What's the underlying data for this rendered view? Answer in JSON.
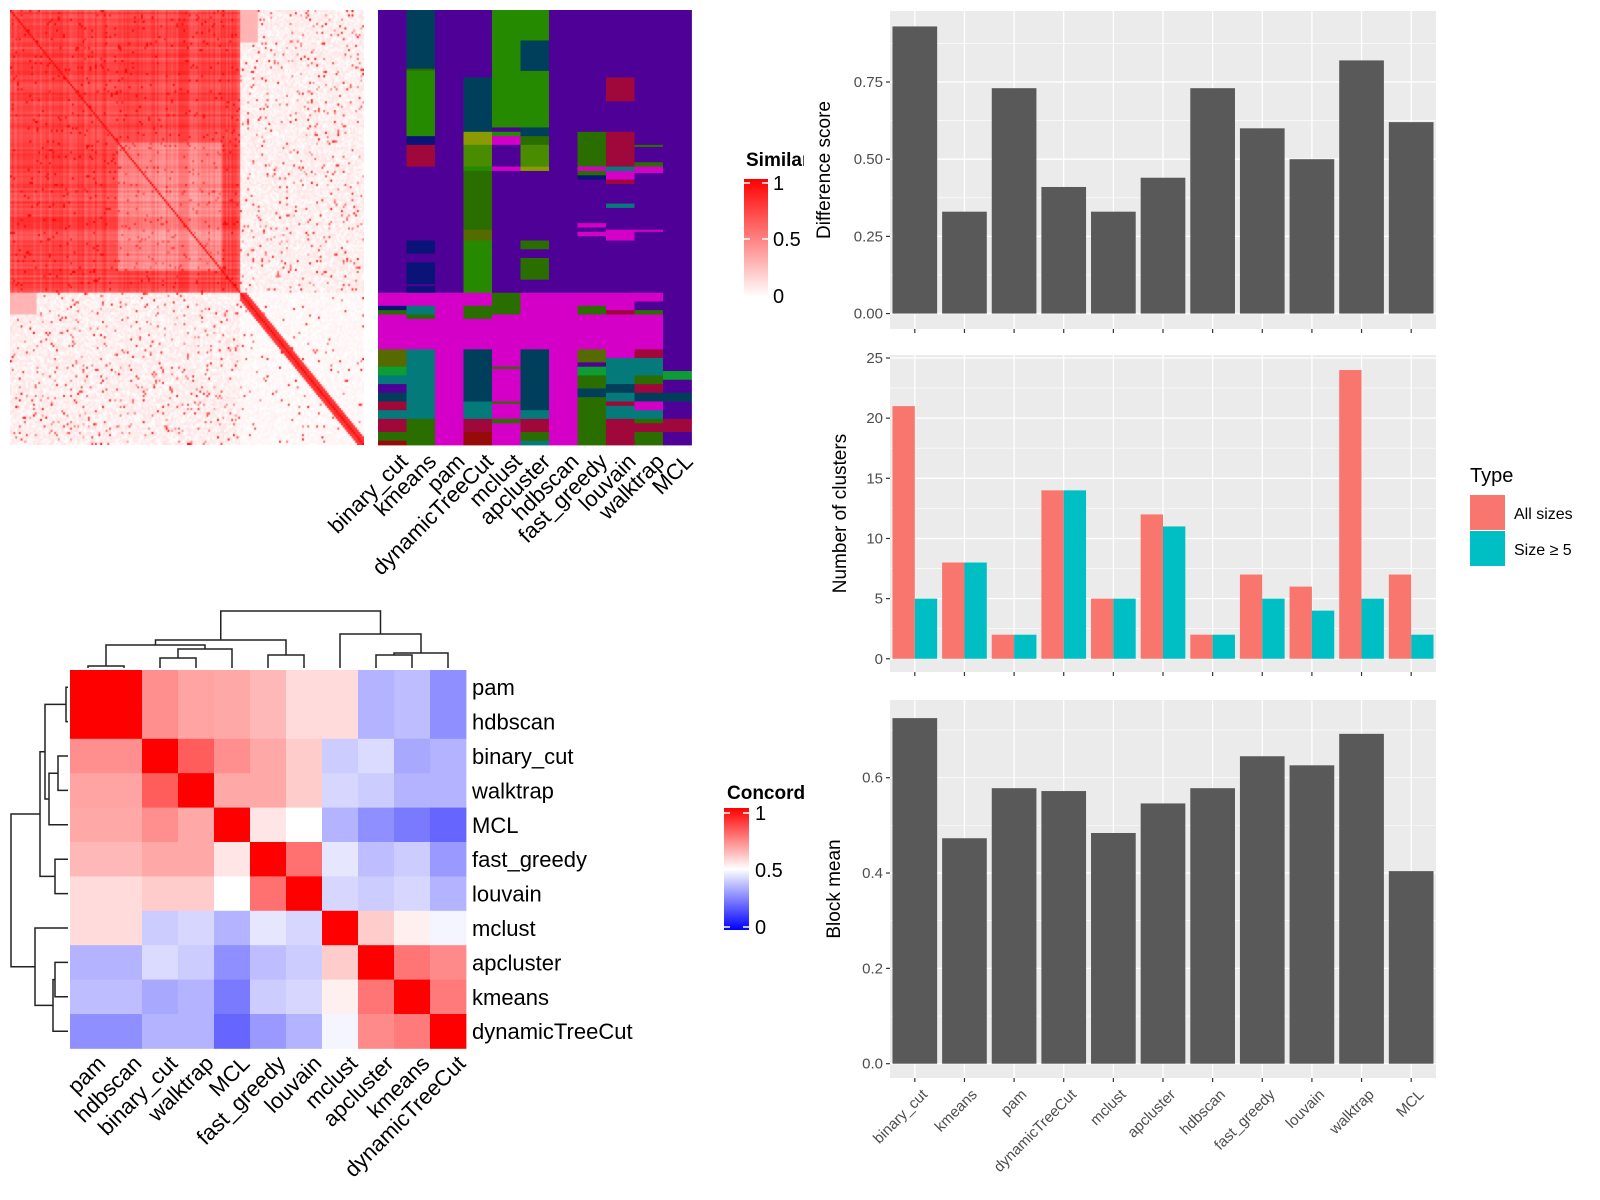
{
  "colors": {
    "bar_gray": "#595959",
    "panel_bg": "#ebebeb",
    "all_sizes": "#F8766D",
    "size_ge_5": "#00BFC4",
    "similarity_low": "#ffffff",
    "similarity_high": "#ff0000",
    "concordance_low": "#0000ff",
    "concordance_mid": "#ffffff",
    "concordance_high": "#ff0000"
  },
  "chart_data": [
    {
      "type": "heatmap",
      "legend_title": "Similarity",
      "legend_ticks": [
        "1",
        "0.5",
        "0"
      ],
      "range": [
        0,
        1
      ]
    },
    {
      "type": "heatmap",
      "columns": [
        "binary_cut",
        "kmeans",
        "pam",
        "dynamicTreeCut",
        "mclust",
        "apcluster",
        "hdbscan",
        "fast_greedy",
        "louvain",
        "walktrap",
        "MCL"
      ],
      "palette": {
        "P": "#4f0096",
        "T": "#003f5c",
        "G": "#268a00",
        "M": "#d400c8",
        "C": "#057a7a",
        "R": "#a0083c",
        "N": "#0a1478",
        "D": "#2b6e00",
        "O": "#8a9a00",
        "L": "#4a8c00",
        "K": "#960a0a",
        "E": "#0c9e34",
        "H": "#556b00"
      },
      "segments": [
        [
          [
            0,
            0.65,
            "P"
          ],
          [
            0.65,
            0.68,
            "M"
          ],
          [
            0.68,
            0.69,
            "N"
          ],
          [
            0.69,
            0.7,
            "D"
          ],
          [
            0.7,
            0.78,
            "M"
          ],
          [
            0.78,
            0.82,
            "H"
          ],
          [
            0.82,
            0.84,
            "E"
          ],
          [
            0.84,
            0.86,
            "C"
          ],
          [
            0.86,
            0.88,
            "P"
          ],
          [
            0.88,
            0.9,
            "T"
          ],
          [
            0.9,
            0.92,
            "R"
          ],
          [
            0.92,
            0.94,
            "C"
          ],
          [
            0.94,
            0.97,
            "R"
          ],
          [
            0.97,
            0.99,
            "D"
          ],
          [
            0.99,
            1,
            "K"
          ]
        ],
        [
          [
            0,
            0.135,
            "T"
          ],
          [
            0.135,
            0.14,
            "D"
          ],
          [
            0.14,
            0.29,
            "G"
          ],
          [
            0.29,
            0.31,
            "N"
          ],
          [
            0.31,
            0.36,
            "R"
          ],
          [
            0.36,
            0.53,
            "P"
          ],
          [
            0.53,
            0.535,
            "N"
          ],
          [
            0.535,
            0.53,
            "P"
          ],
          [
            0.53,
            0.56,
            "N"
          ],
          [
            0.56,
            0.58,
            "P"
          ],
          [
            0.58,
            0.63,
            "N"
          ],
          [
            0.63,
            0.635,
            "P"
          ],
          [
            0.635,
            0.65,
            "N"
          ],
          [
            0.65,
            0.68,
            "M"
          ],
          [
            0.68,
            0.7,
            "C"
          ],
          [
            0.7,
            0.71,
            "D"
          ],
          [
            0.71,
            0.78,
            "M"
          ],
          [
            0.78,
            0.94,
            "C"
          ],
          [
            0.94,
            1,
            "D"
          ]
        ],
        [
          [
            0,
            0.65,
            "P"
          ],
          [
            0.65,
            1,
            "M"
          ]
        ],
        [
          [
            0,
            0.155,
            "P"
          ],
          [
            0.155,
            0.28,
            "T"
          ],
          [
            0.28,
            0.31,
            "O"
          ],
          [
            0.31,
            0.36,
            "L"
          ],
          [
            0.36,
            0.37,
            "G"
          ],
          [
            0.37,
            0.505,
            "D"
          ],
          [
            0.505,
            0.53,
            "H"
          ],
          [
            0.53,
            0.65,
            "G"
          ],
          [
            0.65,
            0.68,
            "M"
          ],
          [
            0.68,
            0.71,
            "D"
          ],
          [
            0.71,
            0.78,
            "M"
          ],
          [
            0.78,
            0.9,
            "T"
          ],
          [
            0.9,
            0.94,
            "C"
          ],
          [
            0.94,
            0.97,
            "R"
          ],
          [
            0.97,
            1,
            "K"
          ]
        ],
        [
          [
            0,
            0.27,
            "G"
          ],
          [
            0.27,
            0.28,
            "P"
          ],
          [
            0.28,
            0.29,
            "G"
          ],
          [
            0.29,
            0.31,
            "M"
          ],
          [
            0.31,
            0.36,
            "P"
          ],
          [
            0.36,
            0.37,
            "M"
          ],
          [
            0.37,
            0.65,
            "P"
          ],
          [
            0.65,
            0.7,
            "D"
          ],
          [
            0.7,
            0.82,
            "M"
          ],
          [
            0.82,
            0.825,
            "D"
          ],
          [
            0.825,
            0.9,
            "M"
          ],
          [
            0.9,
            0.905,
            "D"
          ],
          [
            0.905,
            0.94,
            "M"
          ],
          [
            0.94,
            0.95,
            "D"
          ],
          [
            0.95,
            1,
            "M"
          ]
        ],
        [
          [
            0,
            0.07,
            "G"
          ],
          [
            0.07,
            0.14,
            "T"
          ],
          [
            0.14,
            0.27,
            "G"
          ],
          [
            0.27,
            0.29,
            "T"
          ],
          [
            0.29,
            0.31,
            "D"
          ],
          [
            0.31,
            0.36,
            "L"
          ],
          [
            0.36,
            0.37,
            "O"
          ],
          [
            0.37,
            0.53,
            "P"
          ],
          [
            0.53,
            0.55,
            "D"
          ],
          [
            0.55,
            0.57,
            "P"
          ],
          [
            0.57,
            0.62,
            "D"
          ],
          [
            0.62,
            0.65,
            "P"
          ],
          [
            0.65,
            0.78,
            "M"
          ],
          [
            0.78,
            0.92,
            "T"
          ],
          [
            0.92,
            0.94,
            "C"
          ],
          [
            0.94,
            0.97,
            "R"
          ],
          [
            0.97,
            0.99,
            "D"
          ],
          [
            0.99,
            1,
            "C"
          ]
        ],
        [
          [
            0,
            0.65,
            "P"
          ],
          [
            0.65,
            1,
            "M"
          ]
        ],
        [
          [
            0,
            0.28,
            "P"
          ],
          [
            0.28,
            0.36,
            "D"
          ],
          [
            0.36,
            0.37,
            "M"
          ],
          [
            0.37,
            0.38,
            "D"
          ],
          [
            0.38,
            0.39,
            "N"
          ],
          [
            0.39,
            0.49,
            "P"
          ],
          [
            0.49,
            0.5,
            "M"
          ],
          [
            0.5,
            0.51,
            "P"
          ],
          [
            0.51,
            0.52,
            "M"
          ],
          [
            0.52,
            0.65,
            "P"
          ],
          [
            0.65,
            0.68,
            "M"
          ],
          [
            0.68,
            0.7,
            "D"
          ],
          [
            0.7,
            0.78,
            "M"
          ],
          [
            0.78,
            0.81,
            "H"
          ],
          [
            0.81,
            0.82,
            "P"
          ],
          [
            0.82,
            0.84,
            "E"
          ],
          [
            0.84,
            0.87,
            "D"
          ],
          [
            0.87,
            0.89,
            "T"
          ],
          [
            0.89,
            1,
            "D"
          ]
        ],
        [
          [
            0,
            0.155,
            "P"
          ],
          [
            0.155,
            0.21,
            "R"
          ],
          [
            0.21,
            0.28,
            "P"
          ],
          [
            0.28,
            0.36,
            "R"
          ],
          [
            0.36,
            0.37,
            "C"
          ],
          [
            0.37,
            0.39,
            "M"
          ],
          [
            0.39,
            0.4,
            "R"
          ],
          [
            0.4,
            0.445,
            "P"
          ],
          [
            0.445,
            0.455,
            "C"
          ],
          [
            0.455,
            0.505,
            "P"
          ],
          [
            0.505,
            0.53,
            "M"
          ],
          [
            0.53,
            0.65,
            "P"
          ],
          [
            0.65,
            0.69,
            "M"
          ],
          [
            0.69,
            0.7,
            "R"
          ],
          [
            0.7,
            0.8,
            "M"
          ],
          [
            0.8,
            0.86,
            "C"
          ],
          [
            0.86,
            0.88,
            "T"
          ],
          [
            0.88,
            0.9,
            "C"
          ],
          [
            0.9,
            0.91,
            "R"
          ],
          [
            0.91,
            0.94,
            "C"
          ],
          [
            0.94,
            1,
            "R"
          ]
        ],
        [
          [
            0,
            0.31,
            "P"
          ],
          [
            0.31,
            0.315,
            "D"
          ],
          [
            0.315,
            0.35,
            "P"
          ],
          [
            0.35,
            0.36,
            "D"
          ],
          [
            0.36,
            0.375,
            "M"
          ],
          [
            0.375,
            0.505,
            "P"
          ],
          [
            0.505,
            0.51,
            "M"
          ],
          [
            0.51,
            0.65,
            "P"
          ],
          [
            0.65,
            0.67,
            "M"
          ],
          [
            0.67,
            0.69,
            "P"
          ],
          [
            0.69,
            0.7,
            "D"
          ],
          [
            0.7,
            0.78,
            "M"
          ],
          [
            0.78,
            0.8,
            "R"
          ],
          [
            0.8,
            0.84,
            "C"
          ],
          [
            0.84,
            0.86,
            "D"
          ],
          [
            0.86,
            0.88,
            "R"
          ],
          [
            0.88,
            0.9,
            "T"
          ],
          [
            0.9,
            0.92,
            "M"
          ],
          [
            0.92,
            0.94,
            "C"
          ],
          [
            0.94,
            0.95,
            "D"
          ],
          [
            0.95,
            0.97,
            "R"
          ],
          [
            0.97,
            1,
            "D"
          ]
        ],
        [
          [
            0,
            0.83,
            "P"
          ],
          [
            0.83,
            0.85,
            "E"
          ],
          [
            0.85,
            0.88,
            "P"
          ],
          [
            0.88,
            0.9,
            "T"
          ],
          [
            0.9,
            0.94,
            "P"
          ],
          [
            0.94,
            0.97,
            "R"
          ],
          [
            0.97,
            1,
            "P"
          ]
        ]
      ]
    },
    {
      "type": "heatmap",
      "legend_title": "Concordance",
      "legend_ticks": [
        "1",
        "0.5",
        "0"
      ],
      "range": [
        0,
        1
      ],
      "rows": [
        "pam",
        "hdbscan",
        "binary_cut",
        "walktrap",
        "MCL",
        "fast_greedy",
        "louvain",
        "mclust",
        "apcluster",
        "kmeans",
        "dynamicTreeCut"
      ],
      "columns": [
        "pam",
        "hdbscan",
        "binary_cut",
        "walktrap",
        "MCL",
        "fast_greedy",
        "louvain",
        "mclust",
        "apcluster",
        "kmeans",
        "dynamicTreeCut"
      ],
      "values": [
        [
          1,
          1,
          0.72,
          0.68,
          0.67,
          0.64,
          0.57,
          0.57,
          0.35,
          0.37,
          0.28
        ],
        [
          1,
          1,
          0.72,
          0.68,
          0.67,
          0.64,
          0.57,
          0.57,
          0.35,
          0.37,
          0.28
        ],
        [
          0.72,
          0.72,
          1,
          0.82,
          0.72,
          0.67,
          0.6,
          0.4,
          0.43,
          0.33,
          0.35
        ],
        [
          0.68,
          0.68,
          0.82,
          1,
          0.67,
          0.67,
          0.6,
          0.42,
          0.4,
          0.35,
          0.35
        ],
        [
          0.67,
          0.67,
          0.72,
          0.67,
          1,
          0.55,
          0.5,
          0.35,
          0.28,
          0.24,
          0.2
        ],
        [
          0.64,
          0.64,
          0.67,
          0.67,
          0.55,
          1,
          0.78,
          0.45,
          0.37,
          0.4,
          0.3
        ],
        [
          0.57,
          0.57,
          0.6,
          0.6,
          0.5,
          0.78,
          1,
          0.42,
          0.4,
          0.42,
          0.35
        ],
        [
          0.57,
          0.57,
          0.4,
          0.42,
          0.35,
          0.45,
          0.42,
          1,
          0.6,
          0.53,
          0.48
        ],
        [
          0.35,
          0.35,
          0.43,
          0.4,
          0.28,
          0.37,
          0.4,
          0.6,
          1,
          0.77,
          0.73
        ],
        [
          0.37,
          0.37,
          0.33,
          0.35,
          0.24,
          0.4,
          0.42,
          0.53,
          0.77,
          1,
          0.76
        ],
        [
          0.28,
          0.28,
          0.35,
          0.35,
          0.2,
          0.3,
          0.35,
          0.48,
          0.73,
          0.76,
          1
        ]
      ]
    },
    {
      "type": "bar",
      "categories": [
        "binary_cut",
        "kmeans",
        "pam",
        "dynamicTreeCut",
        "mclust",
        "apcluster",
        "hdbscan",
        "fast_greedy",
        "louvain",
        "walktrap",
        "MCL"
      ],
      "values": [
        0.93,
        0.33,
        0.73,
        0.41,
        0.33,
        0.44,
        0.73,
        0.6,
        0.5,
        0.82,
        0.62
      ],
      "ylabel": "Difference score",
      "yticks": [
        "0.00",
        "0.25",
        "0.50",
        "0.75"
      ],
      "ylim": [
        -0.05,
        0.98
      ],
      "grid": true
    },
    {
      "type": "bar",
      "categories": [
        "binary_cut",
        "kmeans",
        "pam",
        "dynamicTreeCut",
        "mclust",
        "apcluster",
        "hdbscan",
        "fast_greedy",
        "louvain",
        "walktrap",
        "MCL"
      ],
      "series": [
        {
          "name": "All sizes",
          "values": [
            21,
            8,
            2,
            14,
            5,
            12,
            2,
            7,
            6,
            24,
            7
          ]
        },
        {
          "name": "Size ≥ 5",
          "values": [
            5,
            8,
            2,
            14,
            5,
            11,
            2,
            5,
            4,
            5,
            2
          ]
        }
      ],
      "ylabel": "Number of clusters",
      "yticks": [
        "0",
        "5",
        "10",
        "15",
        "20",
        "25"
      ],
      "ylim": [
        -1.1,
        25.25
      ],
      "legend_title": "Type",
      "legend_position": "right",
      "grid": true
    },
    {
      "type": "bar",
      "categories": [
        "binary_cut",
        "kmeans",
        "pam",
        "dynamicTreeCut",
        "mclust",
        "apcluster",
        "hdbscan",
        "fast_greedy",
        "louvain",
        "walktrap",
        "MCL"
      ],
      "values": [
        0.725,
        0.473,
        0.578,
        0.572,
        0.484,
        0.546,
        0.578,
        0.645,
        0.626,
        0.692,
        0.404
      ],
      "ylabel": "Block mean",
      "yticks": [
        "0.0",
        "0.2",
        "0.4",
        "0.6"
      ],
      "ylim": [
        -0.03,
        0.763
      ],
      "grid": true
    }
  ]
}
